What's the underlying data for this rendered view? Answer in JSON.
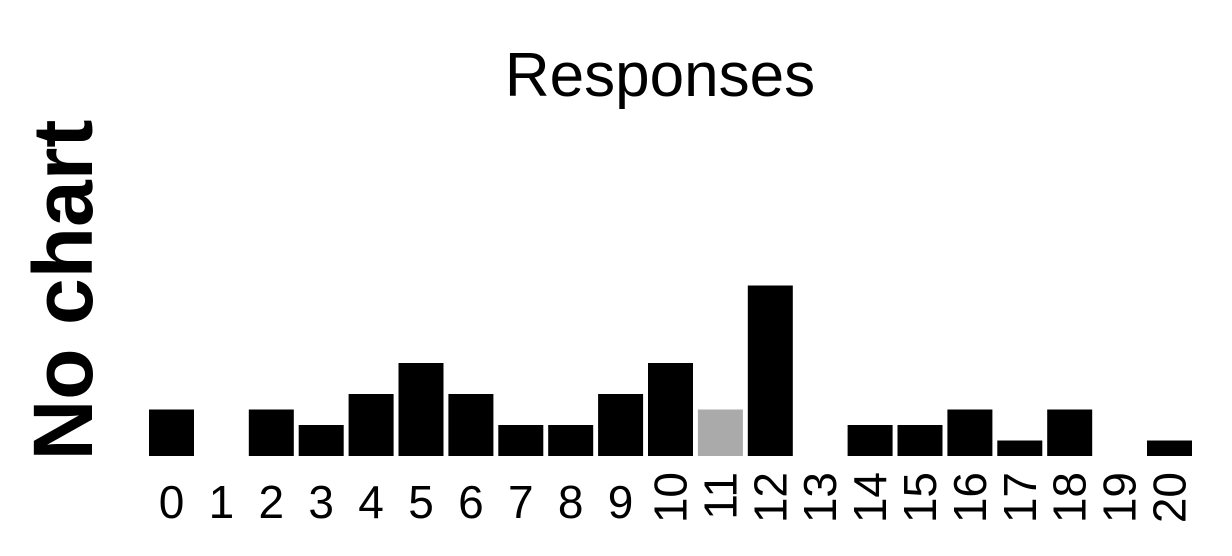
{
  "chart_data": {
    "type": "bar",
    "title": "Responses",
    "ylabel": "No chart",
    "xlabel": "",
    "categories": [
      "0",
      "1",
      "2",
      "3",
      "4",
      "5",
      "6",
      "7",
      "8",
      "9",
      "10",
      "11",
      "12",
      "13",
      "14",
      "15",
      "16",
      "17",
      "18",
      "19",
      "20"
    ],
    "values": [
      3,
      0,
      3,
      2,
      4,
      6,
      4,
      2,
      2,
      4,
      6,
      3,
      11,
      0,
      2,
      2,
      3,
      1,
      3,
      0,
      1
    ],
    "highlight_index": 11,
    "colors": {
      "bar": "#000000",
      "highlight": "#aaaaaa",
      "text": "#000000",
      "background": "#ffffff"
    },
    "grid": false,
    "ylim": [
      0,
      11
    ]
  }
}
